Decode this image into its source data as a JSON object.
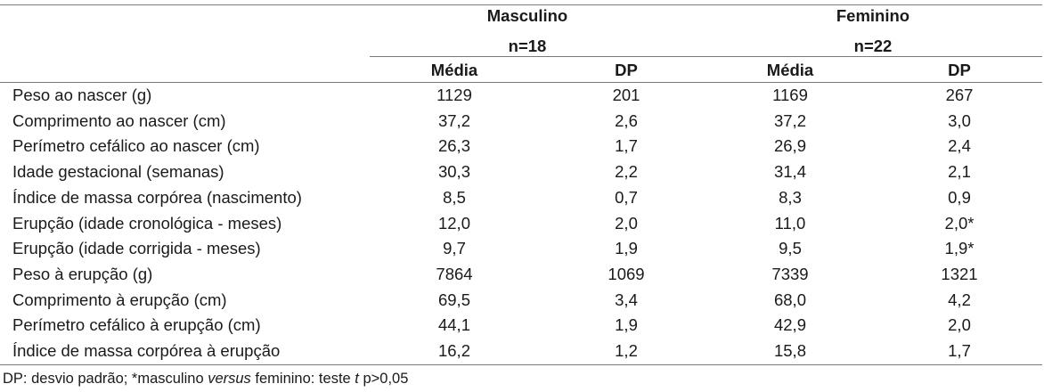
{
  "groups": [
    {
      "name": "Masculino",
      "n": "n=18"
    },
    {
      "name": "Feminino",
      "n": "n=22"
    }
  ],
  "stat_headers": [
    "Média",
    "DP",
    "Média",
    "DP"
  ],
  "rows": [
    {
      "label": "Peso ao nascer (g)",
      "values": [
        "1129",
        "201",
        "1169",
        "267"
      ]
    },
    {
      "label": "Comprimento ao nascer (cm)",
      "values": [
        "37,2",
        "2,6",
        "37,2",
        "3,0"
      ]
    },
    {
      "label": "Perímetro cefálico ao nascer (cm)",
      "values": [
        "26,3",
        "1,7",
        "26,9",
        "2,4"
      ]
    },
    {
      "label": "Idade gestacional (semanas)",
      "values": [
        "30,3",
        "2,2",
        "31,4",
        "2,1"
      ]
    },
    {
      "label": "Índice de massa corpórea (nascimento)",
      "values": [
        "8,5",
        "0,7",
        "8,3",
        "0,9"
      ]
    },
    {
      "label": "Erupção (idade cronológica - meses)",
      "values": [
        "12,0",
        "2,0",
        "11,0",
        "2,0*"
      ]
    },
    {
      "label": "Erupção (idade corrigida - meses)",
      "values": [
        "9,7",
        "1,9",
        "9,5",
        "1,9*"
      ]
    },
    {
      "label": "Peso à erupção (g)",
      "values": [
        "7864",
        "1069",
        "7339",
        "1321"
      ]
    },
    {
      "label": "Comprimento à erupção (cm)",
      "values": [
        "69,5",
        "3,4",
        "68,0",
        "4,2"
      ]
    },
    {
      "label": "Perímetro cefálico à erupção (cm)",
      "values": [
        "44,1",
        "1,9",
        "42,9",
        "2,0"
      ]
    },
    {
      "label": "Índice de massa corpórea à erupção",
      "values": [
        "16,2",
        "1,2",
        "15,8",
        "1,7"
      ]
    }
  ],
  "footnote": {
    "part1": "DP: desvio padrão; *masculino ",
    "italic1": "versus",
    "part2": " feminino: teste ",
    "italic2": "t",
    "part3": " p>0,05"
  }
}
